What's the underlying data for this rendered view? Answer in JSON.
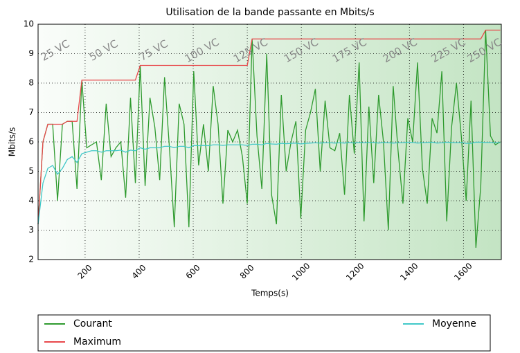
{
  "chart_data": {
    "type": "line",
    "title": "Utilisation de la bande passante en Mbits/s",
    "xlabel": "Temps(s)",
    "ylabel": "Mbits/s",
    "x": [
      26,
      44,
      62,
      80,
      98,
      116,
      134,
      152,
      170,
      188,
      206,
      224,
      242,
      260,
      278,
      296,
      314,
      332,
      350,
      368,
      386,
      404,
      422,
      440,
      458,
      476,
      494,
      512,
      530,
      548,
      566,
      584,
      602,
      620,
      638,
      656,
      674,
      692,
      710,
      728,
      746,
      764,
      782,
      800,
      818,
      836,
      854,
      872,
      890,
      908,
      926,
      944,
      962,
      980,
      998,
      1016,
      1034,
      1052,
      1070,
      1088,
      1106,
      1124,
      1142,
      1160,
      1178,
      1196,
      1214,
      1232,
      1250,
      1268,
      1286,
      1304,
      1322,
      1340,
      1358,
      1376,
      1394,
      1412,
      1430,
      1448,
      1466,
      1484,
      1502,
      1520,
      1538,
      1556,
      1574,
      1592,
      1610,
      1628,
      1646,
      1664,
      1682,
      1700,
      1718,
      1736
    ],
    "series": [
      {
        "name": "Courant",
        "color": "#2e9a2e",
        "values": [
          3.2,
          6.0,
          6.6,
          6.6,
          4.0,
          6.6,
          6.7,
          6.7,
          4.4,
          8.1,
          5.8,
          5.9,
          6.0,
          4.7,
          7.3,
          5.5,
          5.8,
          6.0,
          4.1,
          7.5,
          4.6,
          8.6,
          4.5,
          7.5,
          6.5,
          4.7,
          8.2,
          5.8,
          3.1,
          7.3,
          6.6,
          3.1,
          8.4,
          5.2,
          6.6,
          5.0,
          7.9,
          6.6,
          3.9,
          6.4,
          6.0,
          6.4,
          5.5,
          3.9,
          9.5,
          6.2,
          4.4,
          9.0,
          4.2,
          3.2,
          7.6,
          5.0,
          6.0,
          6.7,
          3.4,
          6.4,
          7.0,
          7.8,
          5.0,
          7.4,
          5.8,
          5.7,
          6.3,
          4.2,
          7.6,
          5.6,
          8.7,
          3.3,
          7.2,
          4.6,
          7.6,
          6.0,
          3.0,
          7.9,
          5.7,
          3.9,
          6.8,
          6.0,
          8.7,
          5.1,
          3.9,
          6.8,
          6.3,
          8.4,
          3.3,
          6.5,
          8.0,
          6.2,
          4.0,
          7.4,
          2.4,
          4.5,
          9.8,
          6.2,
          5.9,
          6.0
        ]
      },
      {
        "name": "Maximum",
        "color": "#e8474a",
        "values": [
          3.2,
          6.0,
          6.6,
          6.6,
          6.6,
          6.6,
          6.7,
          6.7,
          6.7,
          8.1,
          8.1,
          8.1,
          8.1,
          8.1,
          8.1,
          8.1,
          8.1,
          8.1,
          8.1,
          8.1,
          8.1,
          8.6,
          8.6,
          8.6,
          8.6,
          8.6,
          8.6,
          8.6,
          8.6,
          8.6,
          8.6,
          8.6,
          8.6,
          8.6,
          8.6,
          8.6,
          8.6,
          8.6,
          8.6,
          8.6,
          8.6,
          8.6,
          8.6,
          8.6,
          9.5,
          9.5,
          9.5,
          9.5,
          9.5,
          9.5,
          9.5,
          9.5,
          9.5,
          9.5,
          9.5,
          9.5,
          9.5,
          9.5,
          9.5,
          9.5,
          9.5,
          9.5,
          9.5,
          9.5,
          9.5,
          9.5,
          9.5,
          9.5,
          9.5,
          9.5,
          9.5,
          9.5,
          9.5,
          9.5,
          9.5,
          9.5,
          9.5,
          9.5,
          9.5,
          9.5,
          9.5,
          9.5,
          9.5,
          9.5,
          9.5,
          9.5,
          9.5,
          9.5,
          9.5,
          9.5,
          9.5,
          9.5,
          9.8,
          9.8,
          9.8,
          9.8
        ]
      },
      {
        "name": "Moyenne",
        "color": "#40c8c8",
        "values": [
          3.2,
          4.6,
          5.1,
          5.2,
          4.9,
          5.1,
          5.4,
          5.5,
          5.3,
          5.6,
          5.65,
          5.7,
          5.7,
          5.65,
          5.7,
          5.7,
          5.7,
          5.72,
          5.65,
          5.72,
          5.7,
          5.8,
          5.75,
          5.8,
          5.8,
          5.8,
          5.85,
          5.85,
          5.8,
          5.85,
          5.85,
          5.8,
          5.88,
          5.87,
          5.88,
          5.87,
          5.9,
          5.9,
          5.88,
          5.9,
          5.9,
          5.9,
          5.9,
          5.88,
          5.92,
          5.92,
          5.9,
          5.95,
          5.93,
          5.92,
          5.95,
          5.94,
          5.95,
          5.96,
          5.93,
          5.95,
          5.96,
          5.97,
          5.96,
          5.97,
          5.97,
          5.96,
          5.97,
          5.96,
          5.98,
          5.96,
          5.98,
          5.97,
          5.98,
          5.98,
          5.96,
          5.98,
          5.97,
          5.96,
          5.97,
          5.97,
          5.99,
          5.98,
          5.96,
          5.97,
          5.98,
          5.99,
          5.96,
          5.97,
          5.99,
          5.98,
          5.97,
          5.98,
          5.95,
          5.95,
          5.99,
          5.99,
          5.98,
          5.98,
          5.97,
          5.97
        ]
      }
    ],
    "annotations": [
      {
        "text": "25 VC",
        "x": 90,
        "y": 9.1
      },
      {
        "text": "50 VC",
        "x": 269,
        "y": 9.1
      },
      {
        "text": "75 VC",
        "x": 454,
        "y": 9.1
      },
      {
        "text": "100 VC",
        "x": 633,
        "y": 9.1
      },
      {
        "text": "125 VC",
        "x": 813,
        "y": 9.1
      },
      {
        "text": "150 VC",
        "x": 1000,
        "y": 9.1
      },
      {
        "text": "175 VC",
        "x": 1179,
        "y": 9.1
      },
      {
        "text": "200 VC",
        "x": 1366,
        "y": 9.1
      },
      {
        "text": "225 VC",
        "x": 1545,
        "y": 9.1
      },
      {
        "text": "250 VC",
        "x": 1678,
        "y": 9.1
      }
    ],
    "xlim": [
      26,
      1740
    ],
    "xticks": [
      200,
      400,
      600,
      800,
      1000,
      1200,
      1400,
      1600
    ],
    "ylim": [
      2,
      10
    ],
    "yticks": [
      2,
      3,
      4,
      5,
      6,
      7,
      8,
      9,
      10
    ],
    "grid": true
  }
}
